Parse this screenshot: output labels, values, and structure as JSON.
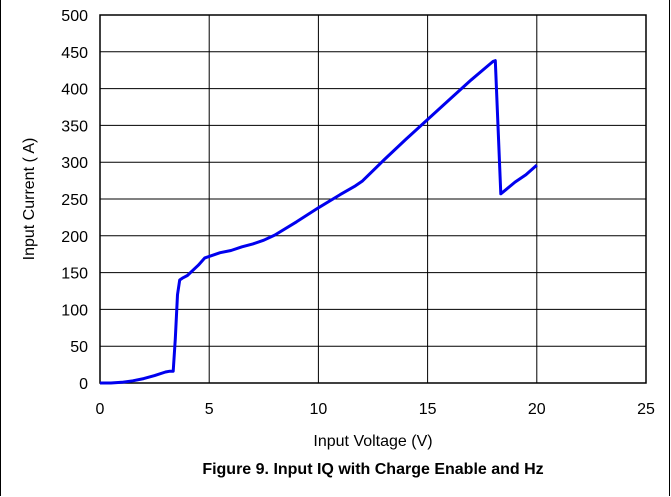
{
  "chart_data": {
    "type": "line",
    "caption": "Figure 9. Input IQ with Charge Enable and Hz",
    "xlabel": "Input Voltage (V)",
    "ylabel": "Input Current (  A)",
    "xlim": [
      0,
      25
    ],
    "ylim": [
      0,
      500
    ],
    "xticks": [
      0,
      5,
      10,
      15,
      20,
      25
    ],
    "yticks": [
      0,
      50,
      100,
      150,
      200,
      250,
      300,
      350,
      400,
      450,
      500
    ],
    "grid": true,
    "line_color": "#0000ee",
    "series": [
      {
        "x": [
          0,
          0.5,
          1.0,
          1.5,
          2.0,
          2.5,
          3.0,
          3.2,
          3.35,
          3.45,
          3.55,
          3.65,
          3.8,
          4.0,
          4.5,
          4.8,
          5.0,
          5.5,
          6.0,
          6.5,
          7.0,
          7.5,
          8.0,
          9.0,
          10.0,
          11.0,
          11.7,
          12.0,
          13.0,
          14.0,
          15.0,
          16.0,
          17.0,
          17.8,
          18.0,
          18.1,
          18.35,
          18.6,
          19.0,
          19.5,
          20.0
        ],
        "y": [
          0,
          0,
          1,
          3,
          6,
          10,
          15,
          16,
          16,
          60,
          120,
          140,
          143,
          146,
          160,
          170,
          172,
          177,
          180,
          185,
          189,
          194,
          201,
          219,
          238,
          256,
          268,
          274,
          303,
          331,
          358,
          385,
          412,
          432,
          437,
          438,
          257,
          263,
          273,
          283,
          296
        ]
      }
    ]
  }
}
